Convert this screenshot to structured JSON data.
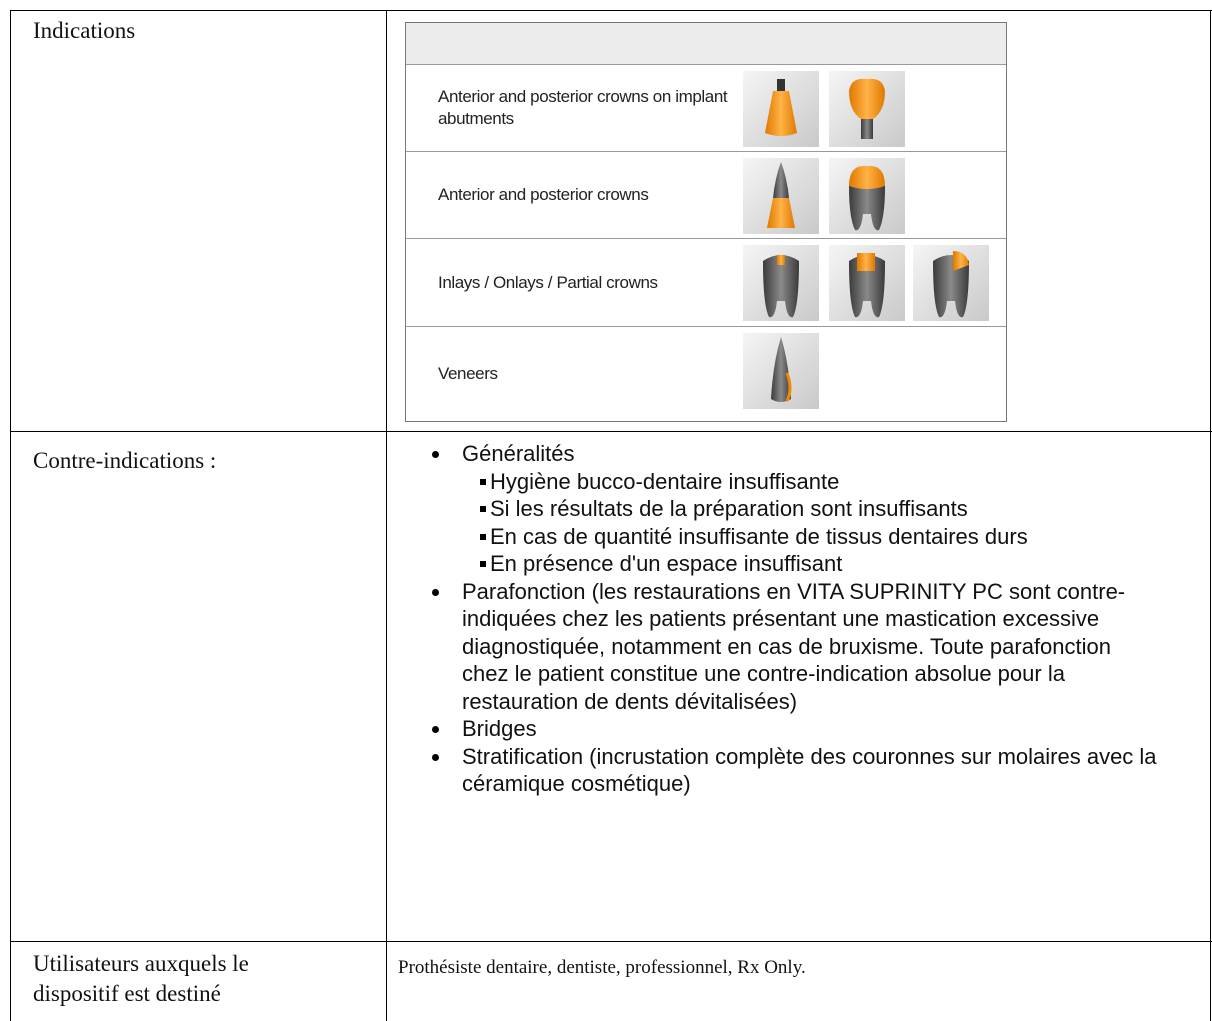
{
  "table": {
    "rows": [
      {
        "label": "Indications",
        "items": [
          {
            "text": "Anterior and posterior crowns on implant abutments"
          },
          {
            "text": "Anterior and posterior crowns"
          },
          {
            "text": "Inlays / Onlays / Partial crowns"
          },
          {
            "text": "Veneers"
          }
        ]
      },
      {
        "label": "Contre-indications :",
        "items": [
          {
            "text": "Généralités",
            "sub": [
              "Hygiène bucco-dentaire insuffisante",
              "Si les résultats de la préparation sont insuffisants",
              "En cas de quantité insuffisante de tissus dentaires durs",
              "En présence d'un espace insuffisant"
            ]
          },
          {
            "text": "Parafonction (les restaurations en VITA SUPRINITY PC sont contre-indiquées chez les patients présentant une mastication excessive diagnostiquée, notamment en cas de bruxisme. Toute parafonction chez le patient constitue une contre-indication absolue pour la restauration de dents dévitalisées)"
          },
          {
            "text": "Bridges"
          },
          {
            "text": "Stratification (incrustation complète des couronnes sur molaires avec la céramique cosmétique)"
          }
        ]
      },
      {
        "label": "Utilisateurs auxquels le dispositif est destiné",
        "value": "Prothésiste dentaire, dentiste, professionnel, Rx Only."
      }
    ]
  }
}
